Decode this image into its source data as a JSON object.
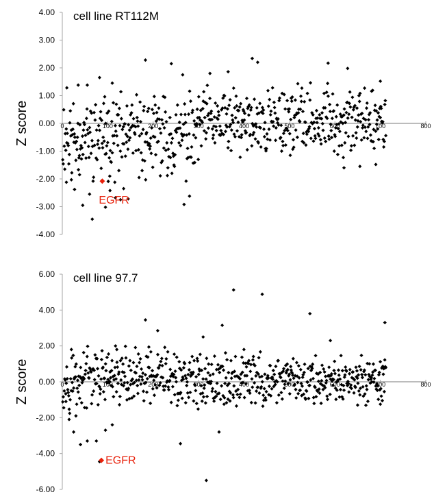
{
  "colors": {
    "point": "#000000",
    "highlight": "#e8200a",
    "axis": "#a6a6a6"
  },
  "chart_data": [
    {
      "type": "scatter",
      "title": "cell line RT112M",
      "ylabel": "Z score",
      "xlim": [
        0,
        800
      ],
      "ylim": [
        -4,
        4
      ],
      "xticks": [
        0,
        100,
        200,
        300,
        400,
        500,
        600,
        700,
        800
      ],
      "xtick_labels": [
        "0",
        "100",
        "200",
        "300",
        "400",
        "500",
        "600",
        "700",
        "800"
      ],
      "yticks": [
        -4,
        -3,
        -2,
        -1,
        0,
        1,
        2,
        3,
        4
      ],
      "ytick_labels": [
        "-4.00",
        "-3.00",
        "-2.00",
        "-1.00",
        "0.00",
        "1.00",
        "2.00",
        "3.00",
        "4.00"
      ],
      "seed": 11,
      "points": [
        [
          183,
          2.28
        ],
        [
          240,
          2.15
        ],
        [
          265,
          1.75
        ],
        [
          325,
          1.8
        ],
        [
          365,
          1.86
        ],
        [
          418,
          2.34
        ],
        [
          430,
          2.2
        ],
        [
          585,
          2.17
        ],
        [
          628,
          1.98
        ],
        [
          82,
          1.65
        ],
        [
          35,
          1.38
        ],
        [
          55,
          1.38
        ],
        [
          110,
          1.45
        ],
        [
          10,
          1.28
        ],
        [
          700,
          1.52
        ],
        [
          9,
          -2.12
        ],
        [
          20,
          -2.03
        ],
        [
          27,
          -2.38
        ],
        [
          45,
          -2.95
        ],
        [
          66,
          -3.45
        ],
        [
          95,
          -3.02
        ],
        [
          117,
          -2.68
        ],
        [
          128,
          -2.75
        ],
        [
          145,
          -2.72
        ],
        [
          268,
          -2.92
        ],
        [
          280,
          -2.62
        ],
        [
          60,
          -2.55
        ],
        [
          105,
          -2.42
        ],
        [
          135,
          -2.35
        ],
        [
          38,
          -1.85
        ],
        [
          620,
          -1.6
        ],
        [
          655,
          -1.55
        ],
        [
          690,
          -1.48
        ]
      ],
      "cloud": {
        "n": 640,
        "x_range": [
          1,
          712
        ],
        "segments": [
          {
            "x_to": 300,
            "top": 1.25,
            "bottom": -2.2
          },
          {
            "x_to": 450,
            "top": 1.45,
            "bottom": -1.45
          },
          {
            "x_to": 712,
            "top": 1.55,
            "bottom": -1.3
          }
        ]
      },
      "highlight": {
        "label": "EGFR",
        "x": 88,
        "y": -2.08
      }
    },
    {
      "type": "scatter",
      "title": "cell line 97.7",
      "ylabel": "Z score",
      "xlim": [
        0,
        800
      ],
      "ylim": [
        -6,
        6
      ],
      "xticks": [
        0,
        100,
        200,
        300,
        400,
        500,
        600,
        700,
        800
      ],
      "xtick_labels": [
        "0",
        "100",
        "200",
        "300",
        "400",
        "500",
        "600",
        "700",
        "800"
      ],
      "yticks": [
        -6,
        -4,
        -2,
        0,
        2,
        4,
        6
      ],
      "ytick_labels": [
        "-6.00",
        "-4.00",
        "-2.00",
        "0.00",
        "2.00",
        "4.00",
        "6.00"
      ],
      "seed": 97,
      "points": [
        [
          377,
          5.12
        ],
        [
          440,
          4.88
        ],
        [
          545,
          3.8
        ],
        [
          183,
          3.45
        ],
        [
          352,
          3.15
        ],
        [
          710,
          3.3
        ],
        [
          210,
          2.85
        ],
        [
          310,
          2.5
        ],
        [
          590,
          2.3
        ],
        [
          15,
          -2.1
        ],
        [
          25,
          -2.8
        ],
        [
          40,
          -3.5
        ],
        [
          55,
          -3.3
        ],
        [
          75,
          -3.3
        ],
        [
          82,
          -4.45
        ],
        [
          95,
          -2.7
        ],
        [
          110,
          -2.4
        ],
        [
          260,
          -3.45
        ],
        [
          317,
          -5.5
        ],
        [
          345,
          -2.8
        ],
        [
          30,
          -1.9
        ],
        [
          8,
          -1.1
        ],
        [
          20,
          1.8
        ],
        [
          120,
          1.8
        ],
        [
          650,
          -1.3
        ],
        [
          700,
          -1.25
        ]
      ],
      "cloud": {
        "n": 650,
        "x_range": [
          1,
          712
        ],
        "segments": [
          {
            "x_to": 300,
            "top": 2.1,
            "bottom": -1.8
          },
          {
            "x_to": 450,
            "top": 2.0,
            "bottom": -1.8
          },
          {
            "x_to": 712,
            "top": 1.5,
            "bottom": -1.4
          }
        ]
      },
      "highlight": {
        "label": "EGFR",
        "x": 86,
        "y": -4.38
      }
    }
  ]
}
